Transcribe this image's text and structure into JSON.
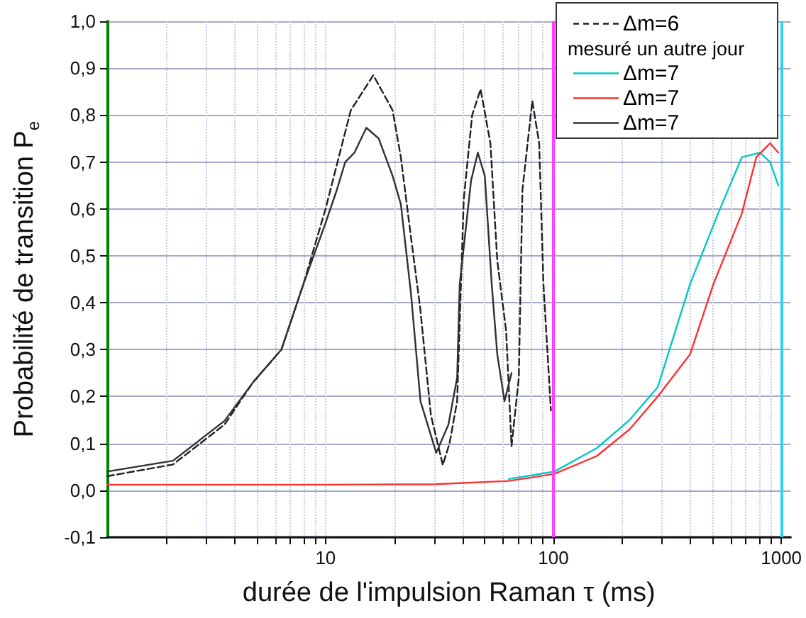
{
  "chart_data": {
    "type": "line",
    "xlabel": "durée de l'impulsion Raman τ (ms)",
    "ylabel": "Probabilité de transition P$_{e}$",
    "log": "x",
    "xlim": [
      1.1,
      1100
    ],
    "xticks": [
      {
        "value": 2,
        "label": null
      },
      {
        "value": 3,
        "label": null
      },
      {
        "value": 4,
        "label": null
      },
      {
        "value": 5,
        "label": null
      },
      {
        "value": 6,
        "label": null
      },
      {
        "value": 7,
        "label": null
      },
      {
        "value": 8,
        "label": null
      },
      {
        "value": 9,
        "label": null
      },
      10,
      {
        "value": 20,
        "label": null
      },
      {
        "value": 30,
        "label": null
      },
      {
        "value": 40,
        "label": null
      },
      {
        "value": 50,
        "label": null
      },
      {
        "value": 60,
        "label": null
      },
      {
        "value": 70,
        "label": null
      },
      {
        "value": 80,
        "label": null
      },
      {
        "value": 90,
        "label": null
      },
      100,
      {
        "value": 200,
        "label": null
      },
      {
        "value": 300,
        "label": null
      },
      {
        "value": 400,
        "label": null
      },
      {
        "value": 500,
        "label": null
      },
      {
        "value": 600,
        "label": null
      },
      {
        "value": 700,
        "label": null
      },
      {
        "value": 800,
        "label": null
      },
      {
        "value": 900,
        "label": null
      },
      1000
    ],
    "ylim": [
      -0.1,
      1.0
    ],
    "yticks": [
      {
        "value": -0.1,
        "label": "-0,1"
      },
      {
        "value": 0,
        "label": "0,0"
      },
      {
        "value": 0.1,
        "label": "0,1"
      },
      {
        "value": 0.2,
        "label": "0,2"
      },
      {
        "value": 0.3,
        "label": "0,3"
      },
      {
        "value": 0.4,
        "label": "0,4"
      },
      {
        "value": 0.5,
        "label": "0,5"
      },
      {
        "value": 0.6,
        "label": "0,6"
      },
      {
        "value": 0.7,
        "label": "0,7"
      },
      {
        "value": 0.8,
        "label": "0,8"
      },
      {
        "value": 0.9,
        "label": "0,9"
      },
      {
        "value": 1.0,
        "label": "1,0"
      }
    ],
    "grid": true,
    "legend": "top right",
    "marker": "none",
    "annotations": [
      "mesuré un autre jour"
    ],
    "ref_lines": [
      {
        "axis": "x",
        "value": 100,
        "label": null,
        "color": "#ff40ff"
      },
      {
        "axis": "x",
        "value": 1000,
        "label": null,
        "color": "#30d0f0"
      }
    ],
    "series": [
      {
        "name": "Δm=6",
        "color": "#202020",
        "line_style": "dashed",
        "x": [
          1.1,
          2.14,
          3.6,
          4.8,
          6.4,
          8.0,
          10,
          12.9,
          16.2,
          19.7,
          21.4,
          23.7,
          26,
          29,
          32.7,
          35,
          37.8,
          40.4,
          44,
          47.9,
          52.9,
          56.7,
          62,
          65.5,
          70.5,
          73.1,
          80.8,
          86.6,
          90.4,
          97.5
        ],
        "values": [
          0.03,
          0.055,
          0.14,
          0.23,
          0.3,
          0.44,
          0.6,
          0.81,
          0.885,
          0.81,
          0.71,
          0.54,
          0.39,
          0.16,
          0.054,
          0.1,
          0.19,
          0.62,
          0.8,
          0.855,
          0.74,
          0.49,
          0.34,
          0.094,
          0.24,
          0.64,
          0.83,
          0.74,
          0.44,
          0.17
        ]
      },
      {
        "name": "Δm=7",
        "color": "#00c8c8",
        "x": [
          63.7,
          101,
          155,
          216,
          287,
          398,
          528,
          671,
          806,
          893,
          970
        ],
        "values": [
          0.024,
          0.04,
          0.09,
          0.15,
          0.22,
          0.44,
          0.59,
          0.71,
          0.72,
          0.7,
          0.65
        ]
      },
      {
        "name": "Δm=7",
        "color": "#ff3030",
        "x": [
          1.1,
          10,
          30,
          63.7,
          101,
          155,
          216,
          287,
          398,
          504,
          671,
          777,
          893,
          970
        ],
        "values": [
          0.012,
          0.012,
          0.013,
          0.02,
          0.035,
          0.073,
          0.13,
          0.2,
          0.29,
          0.44,
          0.59,
          0.71,
          0.74,
          0.72
        ]
      },
      {
        "name": "Δm=7",
        "color": "#303030",
        "x": [
          1.1,
          2.14,
          3.6,
          4.8,
          6.4,
          8.0,
          10,
          11.2,
          12.2,
          13.4,
          15.1,
          17.1,
          19.7,
          21.4,
          23.7,
          26.1,
          30.6,
          34.6,
          37.8,
          38.8,
          43.5,
          46.6,
          50,
          53.6,
          56.7,
          61,
          65.5
        ],
        "values": [
          0.04,
          0.063,
          0.148,
          0.23,
          0.3,
          0.44,
          0.57,
          0.64,
          0.7,
          0.72,
          0.773,
          0.75,
          0.67,
          0.61,
          0.42,
          0.19,
          0.08,
          0.14,
          0.24,
          0.44,
          0.66,
          0.72,
          0.67,
          0.44,
          0.29,
          0.19,
          0.25
        ]
      }
    ]
  }
}
